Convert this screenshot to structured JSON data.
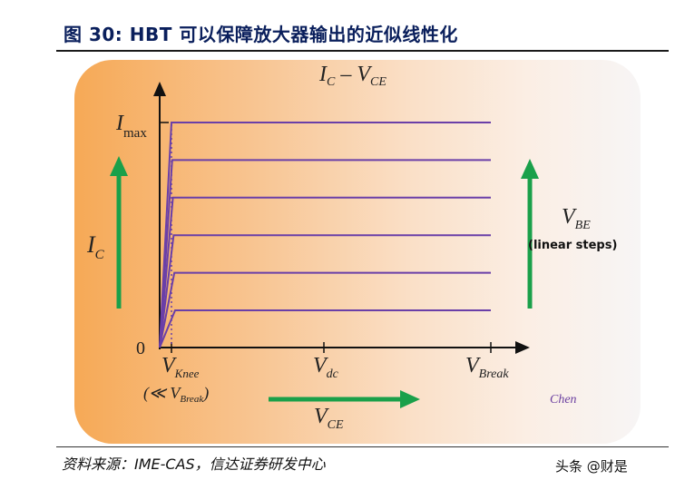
{
  "figure": {
    "title": "图 30: HBT 可以保障放大器输出的近似线性化",
    "source": "资料来源：IME-CAS，信达证券研发中心",
    "watermark": "头条 @财是"
  },
  "diagram": {
    "header": {
      "main": "I",
      "sub": "C",
      "dash": " – V",
      "sub2": "CE"
    },
    "y_top": {
      "main": "I",
      "sub": "max"
    },
    "origin": "0",
    "left_label": {
      "main": "I",
      "sub": "C"
    },
    "right_label": {
      "main": "V",
      "sub": "BE",
      "note": "(linear steps)"
    },
    "x_labels": {
      "knee": {
        "main": "V",
        "sub": "Knee"
      },
      "knee_note": {
        "prefix": "(≪ V",
        "sub": "Break",
        "suffix": ")"
      },
      "dc": {
        "main": "V",
        "sub": "dc"
      },
      "break": {
        "main": "V",
        "sub": "Break"
      }
    },
    "bottom_label": {
      "main": "V",
      "sub": "CE"
    },
    "author": "Chen",
    "curve_count": 6,
    "colors": {
      "curve": "#6a3fa8",
      "arrow": "#1aa04a",
      "axis": "#111111",
      "author": "#6b3fa0"
    }
  }
}
